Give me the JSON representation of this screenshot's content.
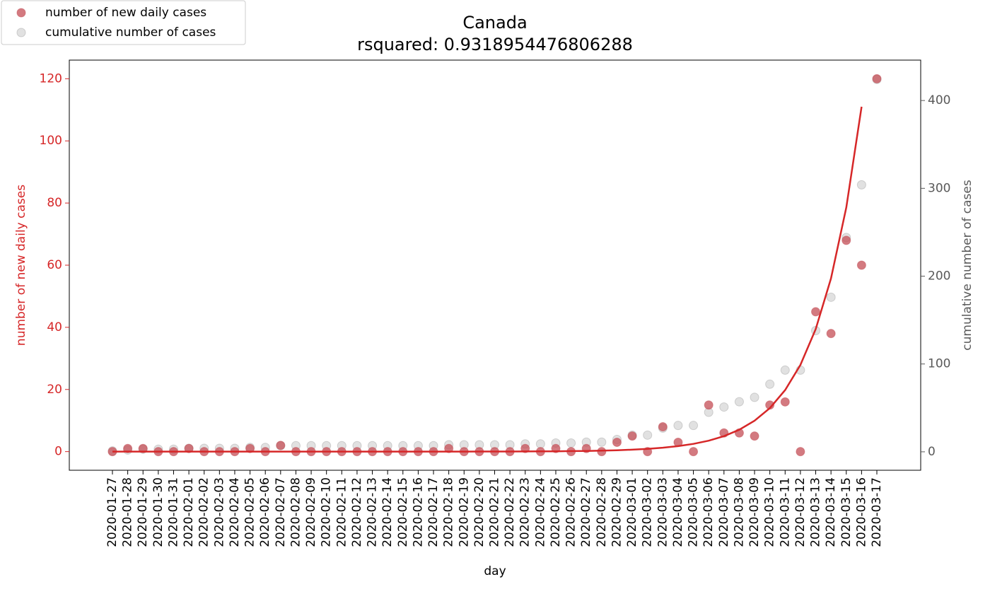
{
  "chart_data": {
    "type": "scatter",
    "title": "Canada",
    "subtitle": "rsquared: 0.9318954476806288",
    "xlabel": "day",
    "ylabel": "number of new daily cases",
    "y2label": "cumulative number of cases",
    "ycolor": "#d62728",
    "y2color": "#595959",
    "legend": "upper left",
    "categories": [
      "2020-01-27",
      "2020-01-28",
      "2020-01-29",
      "2020-01-30",
      "2020-01-31",
      "2020-02-01",
      "2020-02-02",
      "2020-02-03",
      "2020-02-04",
      "2020-02-05",
      "2020-02-06",
      "2020-02-07",
      "2020-02-08",
      "2020-02-09",
      "2020-02-10",
      "2020-02-11",
      "2020-02-12",
      "2020-02-13",
      "2020-02-14",
      "2020-02-15",
      "2020-02-16",
      "2020-02-17",
      "2020-02-18",
      "2020-02-19",
      "2020-02-20",
      "2020-02-21",
      "2020-02-22",
      "2020-02-23",
      "2020-02-24",
      "2020-02-25",
      "2020-02-26",
      "2020-02-27",
      "2020-02-28",
      "2020-02-29",
      "2020-03-01",
      "2020-03-02",
      "2020-03-03",
      "2020-03-04",
      "2020-03-05",
      "2020-03-06",
      "2020-03-07",
      "2020-03-08",
      "2020-03-09",
      "2020-03-10",
      "2020-03-11",
      "2020-03-12",
      "2020-03-13",
      "2020-03-14",
      "2020-03-15",
      "2020-03-16",
      "2020-03-17"
    ],
    "series": [
      {
        "name": "number of new daily cases",
        "color": "#c44e55",
        "axis": "y",
        "values": [
          0,
          1,
          1,
          0,
          0,
          1,
          0,
          0,
          0,
          1,
          0,
          2,
          0,
          0,
          0,
          0,
          0,
          0,
          0,
          0,
          0,
          0,
          1,
          0,
          0,
          0,
          0,
          1,
          0,
          1,
          0,
          1,
          0,
          3,
          5,
          0,
          8,
          3,
          0,
          15,
          6,
          6,
          5,
          15,
          16,
          0,
          45,
          38,
          68,
          60,
          120
        ]
      },
      {
        "name": "cumulative number of cases",
        "color": "#c8c8c8",
        "axis": "y2",
        "values": [
          1,
          2,
          3,
          3,
          3,
          4,
          4,
          4,
          4,
          5,
          5,
          7,
          7,
          7,
          7,
          7,
          7,
          7,
          7,
          7,
          7,
          7,
          8,
          8,
          8,
          8,
          8,
          9,
          9,
          10,
          10,
          11,
          11,
          14,
          19,
          19,
          27,
          30,
          30,
          45,
          51,
          57,
          62,
          77,
          93,
          93,
          138,
          176,
          244,
          304,
          424
        ]
      }
    ],
    "fit": {
      "color": "#d62728",
      "values": [
        0,
        0,
        0,
        0,
        0,
        0,
        0,
        0,
        0,
        0,
        0,
        0,
        0,
        0,
        0,
        0,
        0,
        0,
        0,
        0,
        0,
        0,
        0.01,
        0.01,
        0.02,
        0.03,
        0.04,
        0.06,
        0.08,
        0.11,
        0.16,
        0.22,
        0.31,
        0.44,
        0.63,
        0.89,
        1.25,
        1.77,
        2.5,
        3.52,
        4.98,
        7.03,
        9.92,
        14,
        19.8,
        27.9,
        39.4,
        55.7,
        78.6,
        111,
        null
      ]
    },
    "ylim": [
      -6,
      126
    ],
    "yticks": [
      0,
      20,
      40,
      60,
      80,
      100,
      120
    ],
    "y2lim": [
      -21,
      446
    ],
    "y2ticks": [
      0,
      100,
      200,
      300,
      400
    ]
  }
}
